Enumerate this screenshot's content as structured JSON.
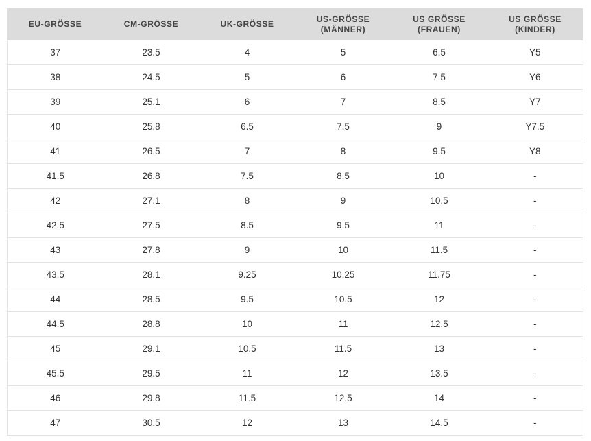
{
  "table": {
    "header": [
      "EU-GRÖSSE",
      "CM-GRÖSSE",
      "UK-GRÖSSE",
      "US-GRÖSSE\n(MÄNNER)",
      "US GRÖSSE\n(FRAUEN)",
      "US GRÖSSE\n(KINDER)"
    ],
    "rows": [
      [
        "37",
        "23.5",
        "4",
        "5",
        "6.5",
        "Y5"
      ],
      [
        "38",
        "24.5",
        "5",
        "6",
        "7.5",
        "Y6"
      ],
      [
        "39",
        "25.1",
        "6",
        "7",
        "8.5",
        "Y7"
      ],
      [
        "40",
        "25.8",
        "6.5",
        "7.5",
        "9",
        "Y7.5"
      ],
      [
        "41",
        "26.5",
        "7",
        "8",
        "9.5",
        "Y8"
      ],
      [
        "41.5",
        "26.8",
        "7.5",
        "8.5",
        "10",
        "-"
      ],
      [
        "42",
        "27.1",
        "8",
        "9",
        "10.5",
        "-"
      ],
      [
        "42.5",
        "27.5",
        "8.5",
        "9.5",
        "11",
        "-"
      ],
      [
        "43",
        "27.8",
        "9",
        "10",
        "11.5",
        "-"
      ],
      [
        "43.5",
        "28.1",
        "9.25",
        "10.25",
        "11.75",
        "-"
      ],
      [
        "44",
        "28.5",
        "9.5",
        "10.5",
        "12",
        "-"
      ],
      [
        "44.5",
        "28.8",
        "10",
        "11",
        "12.5",
        "-"
      ],
      [
        "45",
        "29.1",
        "10.5",
        "11.5",
        "13",
        "-"
      ],
      [
        "45.5",
        "29.5",
        "11",
        "12",
        "13.5",
        "-"
      ],
      [
        "46",
        "29.8",
        "11.5",
        "12.5",
        "14",
        "-"
      ],
      [
        "47",
        "30.5",
        "12",
        "13",
        "14.5",
        "-"
      ]
    ]
  }
}
